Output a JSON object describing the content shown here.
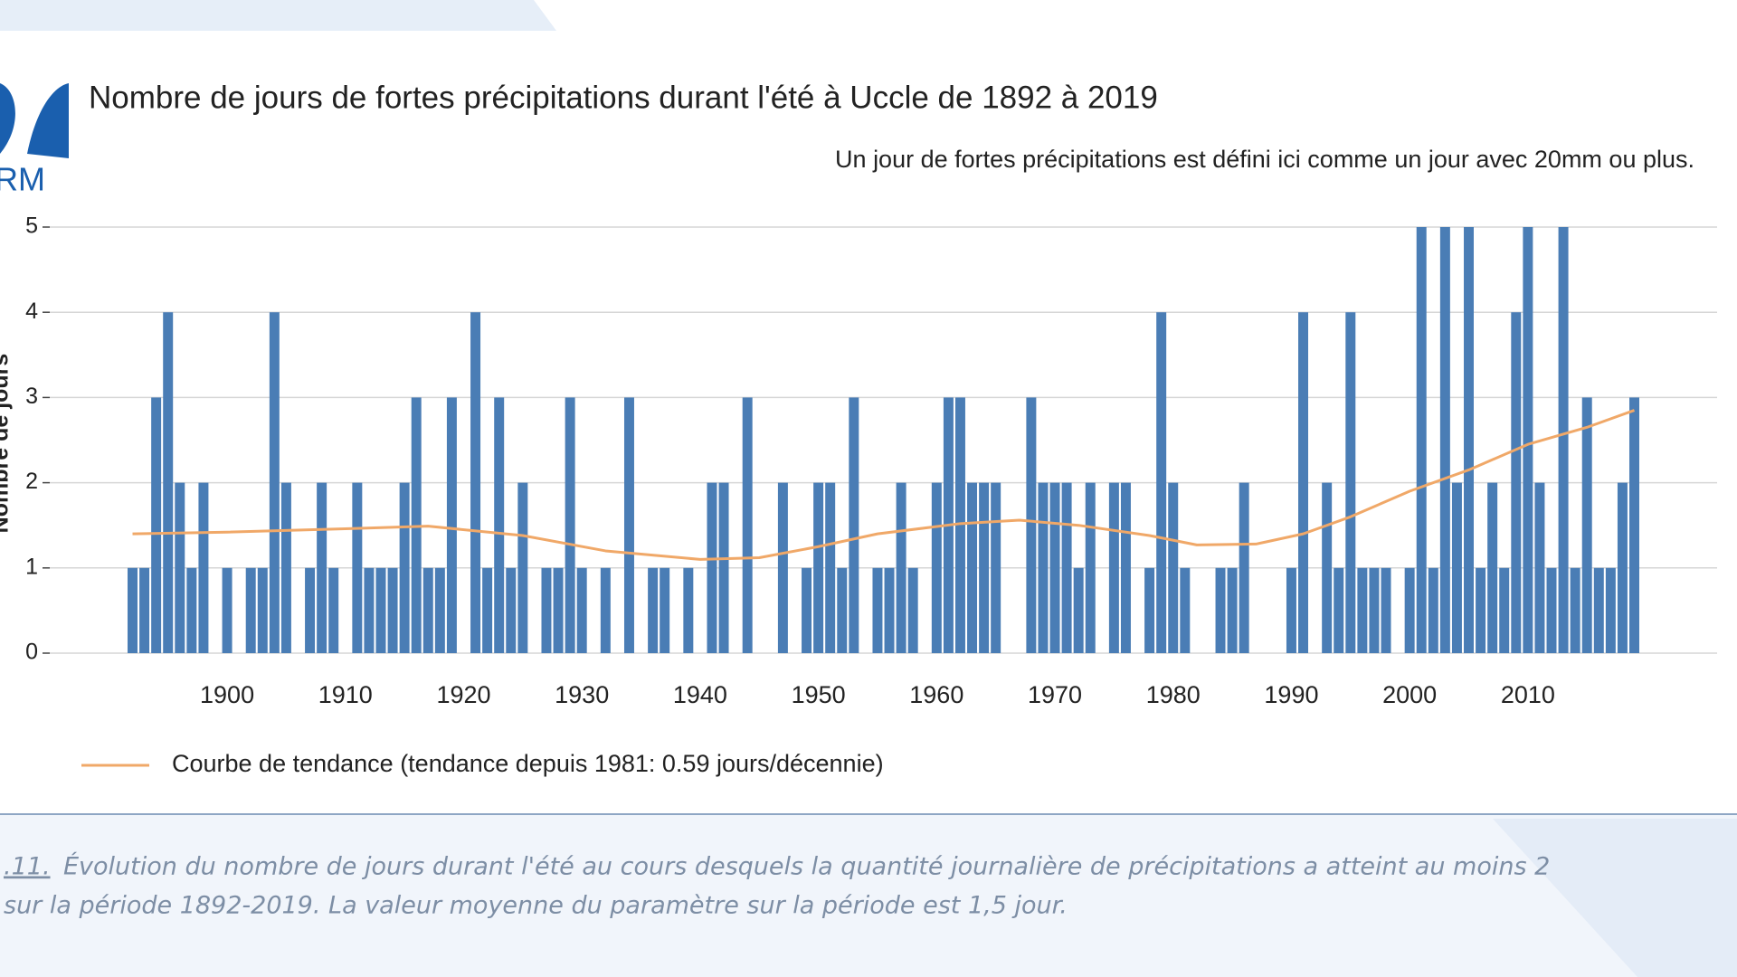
{
  "logo": "RM",
  "chart_data": {
    "type": "bar",
    "title": "Nombre de jours de fortes précipitations durant l'été à Uccle de 1892 à 2019",
    "subtitle": "Un jour de fortes précipitations est défini ici comme un jour avec 20mm ou plus.",
    "ylabel": "Nombre de jours",
    "xlim": [
      1885,
      2026
    ],
    "xticks": [
      1900,
      1910,
      1920,
      1930,
      1940,
      1950,
      1960,
      1970,
      1980,
      1990,
      2000,
      2010
    ],
    "ylim": [
      0,
      5
    ],
    "yticks": [
      0,
      1,
      2,
      3,
      4,
      5
    ],
    "grid": true,
    "legend": "bottom-left",
    "series": [
      {
        "type": "bar",
        "color": "#4a7db5",
        "x": [
          1892,
          1893,
          1894,
          1895,
          1896,
          1897,
          1898,
          1899,
          1900,
          1901,
          1902,
          1903,
          1904,
          1905,
          1906,
          1907,
          1908,
          1909,
          1910,
          1911,
          1912,
          1913,
          1914,
          1915,
          1916,
          1917,
          1918,
          1919,
          1920,
          1921,
          1922,
          1923,
          1924,
          1925,
          1926,
          1927,
          1928,
          1929,
          1930,
          1931,
          1932,
          1933,
          1934,
          1935,
          1936,
          1937,
          1938,
          1939,
          1940,
          1941,
          1942,
          1943,
          1944,
          1945,
          1946,
          1947,
          1948,
          1949,
          1950,
          1951,
          1952,
          1953,
          1954,
          1955,
          1956,
          1957,
          1958,
          1959,
          1960,
          1961,
          1962,
          1963,
          1964,
          1965,
          1966,
          1967,
          1968,
          1969,
          1970,
          1971,
          1972,
          1973,
          1974,
          1975,
          1976,
          1977,
          1978,
          1979,
          1980,
          1981,
          1982,
          1983,
          1984,
          1985,
          1986,
          1987,
          1988,
          1989,
          1990,
          1991,
          1992,
          1993,
          1994,
          1995,
          1996,
          1997,
          1998,
          1999,
          2000,
          2001,
          2002,
          2003,
          2004,
          2005,
          2006,
          2007,
          2008,
          2009,
          2010,
          2011,
          2012,
          2013,
          2014,
          2015,
          2016,
          2017,
          2018,
          2019
        ],
        "values": [
          1,
          1,
          3,
          4,
          2,
          1,
          2,
          0,
          1,
          0,
          1,
          1,
          4,
          2,
          0,
          1,
          2,
          1,
          0,
          2,
          1,
          1,
          1,
          2,
          3,
          1,
          1,
          3,
          0,
          4,
          1,
          3,
          1,
          2,
          0,
          1,
          1,
          3,
          1,
          0,
          1,
          0,
          3,
          0,
          1,
          1,
          0,
          1,
          0,
          2,
          2,
          0,
          3,
          0,
          0,
          2,
          0,
          1,
          2,
          2,
          1,
          3,
          0,
          1,
          1,
          2,
          1,
          0,
          2,
          3,
          3,
          2,
          2,
          2,
          0,
          0,
          3,
          2,
          2,
          2,
          1,
          2,
          0,
          2,
          2,
          0,
          1,
          4,
          2,
          1,
          0,
          0,
          1,
          1,
          2,
          0,
          0,
          0,
          1,
          4,
          0,
          2,
          1,
          4,
          1,
          1,
          1,
          0,
          1,
          5,
          1,
          5,
          2,
          5,
          1,
          2,
          1,
          4,
          5,
          2,
          1,
          5,
          1,
          3,
          1,
          1,
          2,
          3
        ]
      },
      {
        "type": "line",
        "name": "Courbe de tendance (tendance depuis 1981: 0.59 jours/décennie)",
        "color": "#f0a868",
        "x": [
          1892,
          1900,
          1910,
          1917,
          1925,
          1932,
          1940,
          1945,
          1950,
          1955,
          1962,
          1967,
          1972,
          1978,
          1982,
          1987,
          1991,
          1995,
          2000,
          2005,
          2010,
          2015,
          2019
        ],
        "values": [
          1.4,
          1.42,
          1.46,
          1.49,
          1.38,
          1.2,
          1.1,
          1.12,
          1.25,
          1.4,
          1.52,
          1.56,
          1.5,
          1.38,
          1.27,
          1.28,
          1.4,
          1.6,
          1.9,
          2.15,
          2.45,
          2.65,
          2.85
        ]
      }
    ]
  },
  "caption": {
    "ref": ".11.",
    "line1": "Évolution du nombre de jours durant l'été au cours desquels la quantité journalière de précipitations a atteint au moins 2",
    "line2": "sur la période 1892-2019. La valeur moyenne du paramètre sur la période est 1,5 jour."
  }
}
